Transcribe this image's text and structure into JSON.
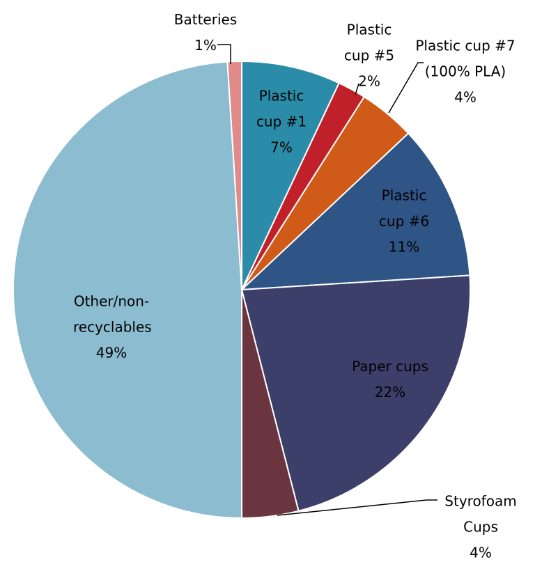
{
  "chart_data": {
    "type": "pie",
    "categories": [
      "Plastic cup #1",
      "Plastic cup #5",
      "Plastic cup #7 (100% PLA)",
      "Plastic cup #6",
      "Paper cups",
      "Styrofoam Cups",
      "Other/non-recyclables",
      "Batteries"
    ],
    "values": [
      7,
      2,
      4,
      11,
      22,
      4,
      49,
      1
    ],
    "value_labels": [
      "7%",
      "2%",
      "4%",
      "11%",
      "22%",
      "4%",
      "49%",
      "1%"
    ],
    "colors": [
      "#2a8ca8",
      "#c0202a",
      "#d05a18",
      "#2f5486",
      "#3d3f6b",
      "#6b3540",
      "#8bbccf",
      "#e08a8a"
    ]
  }
}
